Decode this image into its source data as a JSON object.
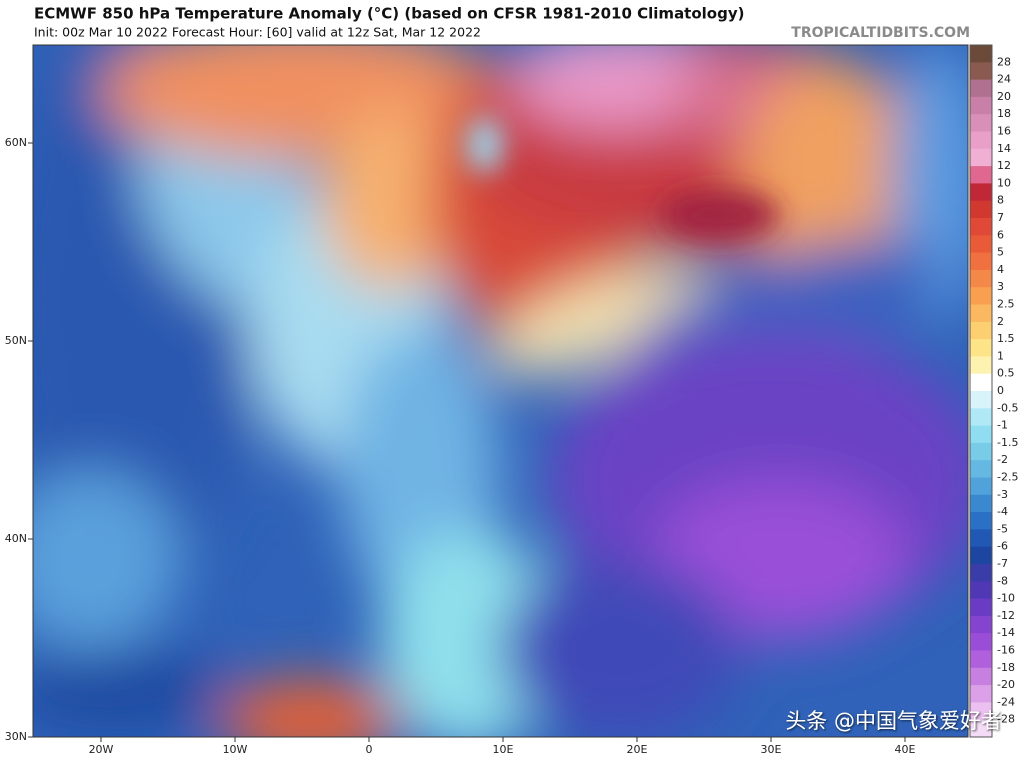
{
  "header": {
    "title": "ECMWF 850 hPa Temperature Anomaly (°C) (based on CFSR 1981-2010 Climatology)",
    "subtitle": "Init: 00z Mar 10 2022   Forecast Hour: [60]   valid at 12z Sat, Mar 12 2022",
    "site": "TROPICALTIDBITS.COM"
  },
  "map": {
    "lat_labels": [
      "60N",
      "50N",
      "40N",
      "30N"
    ],
    "lon_labels": [
      "20W",
      "10W",
      "0",
      "10E",
      "20E",
      "30E",
      "40E"
    ]
  },
  "colorbar": {
    "labels": [
      "28",
      "24",
      "20",
      "18",
      "16",
      "14",
      "12",
      "10",
      "8",
      "7",
      "6",
      "5",
      "4",
      "3",
      "2.5",
      "2",
      "1.5",
      "1",
      "0.5",
      "0",
      "-0.5",
      "-1",
      "-1.5",
      "-2",
      "-2.5",
      "-3",
      "-4",
      "-5",
      "-6",
      "-7",
      "-8",
      "-10",
      "-12",
      "-14",
      "-16",
      "-18",
      "-20",
      "-24",
      "-28"
    ]
  },
  "watermark": "头条 @中国气象爱好者"
}
